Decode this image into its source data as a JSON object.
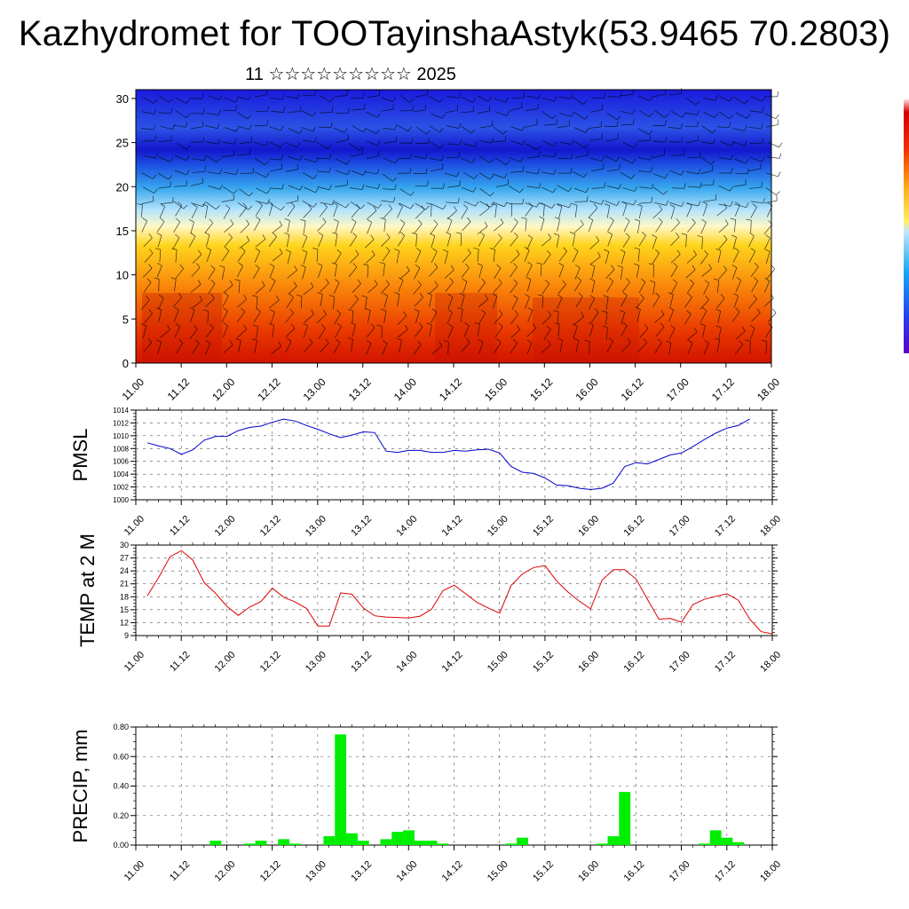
{
  "header": {
    "title": "Kazhydromet for TOOTayinshaAstyk(53.9465 70.2803)",
    "subtitle": "11 ☆☆☆☆☆☆☆☆☆ 2025"
  },
  "colors": {
    "pmsl_line": "#0000cc",
    "temp_line": "#dd0000",
    "precip_bar": "#00ee00",
    "cross_section_cold": "#1a1ae0",
    "cross_section_warm": "#e01a00"
  },
  "chart_data": [
    {
      "type": "heatmap",
      "name": "cross-section",
      "title": "",
      "xlabel": "",
      "ylabel": "",
      "x_tick_labels": [
        "11.00",
        "11.12",
        "12.00",
        "12.12",
        "13.00",
        "13.12",
        "14.00",
        "14.12",
        "15.00",
        "15.12",
        "16.00",
        "16.12",
        "17.00",
        "17.12",
        "18.00"
      ],
      "y_ticks": [
        0,
        5,
        10,
        15,
        20,
        25,
        30
      ],
      "ylim": [
        0,
        31
      ],
      "overlay": "wind barbs",
      "colorbar": "rainbow (blue-cyan-yellow-red), labels not visible"
    },
    {
      "type": "line",
      "name": "pmsl",
      "ylabel": "PMSL",
      "ylim": [
        1000,
        1014
      ],
      "y_ticks": [
        1000,
        1002,
        1004,
        1006,
        1008,
        1010,
        1012,
        1014
      ],
      "x_tick_labels": [
        "11.00",
        "11.12",
        "12.00",
        "12.12",
        "13.00",
        "13.12",
        "14.00",
        "14.12",
        "15.00",
        "15.12",
        "16.00",
        "16.12",
        "17.00",
        "17.12",
        "18.00"
      ],
      "x_step_hours": 3,
      "values": [
        1008.9,
        1008.4,
        1008.0,
        1007.1,
        1007.8,
        1009.3,
        1009.9,
        1009.9,
        1010.8,
        1011.3,
        1011.5,
        1012.1,
        1012.6,
        1012.3,
        1011.6,
        1011.0,
        1010.3,
        1009.7,
        1010.1,
        1010.6,
        1010.5,
        1007.6,
        1007.4,
        1007.7,
        1007.7,
        1007.4,
        1007.4,
        1007.7,
        1007.6,
        1007.8,
        1007.9,
        1007.3,
        1005.2,
        1004.3,
        1004.1,
        1003.4,
        1002.3,
        1002.2,
        1001.8,
        1001.6,
        1001.8,
        1002.6,
        1005.2,
        1005.8,
        1005.6,
        1006.3,
        1007.0,
        1007.3,
        1008.3,
        1009.4,
        1010.4,
        1011.2,
        1011.6,
        1012.6
      ]
    },
    {
      "type": "line",
      "name": "temp2m",
      "ylabel": "TEMP at 2 M",
      "ylim": [
        9,
        30
      ],
      "y_ticks": [
        9,
        12,
        15,
        18,
        21,
        24,
        27,
        30
      ],
      "x_tick_labels": [
        "11.00",
        "11.12",
        "12.00",
        "12.12",
        "13.00",
        "13.12",
        "14.00",
        "14.12",
        "15.00",
        "15.12",
        "16.00",
        "16.12",
        "17.00",
        "17.12",
        "18.00"
      ],
      "x_step_hours": 3,
      "values": [
        18.2,
        22.5,
        27.3,
        28.7,
        26.5,
        21.3,
        18.8,
        15.8,
        13.7,
        15.6,
        16.9,
        20.0,
        17.9,
        16.8,
        15.3,
        11.2,
        11.2,
        18.9,
        18.6,
        15.4,
        13.6,
        13.3,
        13.2,
        13.1,
        13.5,
        15.1,
        19.4,
        20.7,
        18.7,
        16.7,
        15.4,
        14.2,
        20.6,
        23.3,
        24.8,
        25.2,
        21.7,
        19.1,
        17.0,
        15.2,
        21.8,
        24.3,
        24.3,
        22.1,
        17.4,
        12.8,
        13.0,
        12.1,
        16.2,
        17.4,
        18.1,
        18.7,
        17.2,
        12.8,
        9.9,
        9.4
      ]
    },
    {
      "type": "bar",
      "name": "precip",
      "ylabel": "PRECIP, mm",
      "ylim": [
        0,
        0.8
      ],
      "y_tick_labels": [
        "0.00",
        "0.20",
        "0.40",
        "0.60",
        "0.80"
      ],
      "x_tick_labels": [
        "11.00",
        "11.12",
        "12.00",
        "12.12",
        "13.00",
        "13.12",
        "14.00",
        "14.12",
        "15.00",
        "15.12",
        "16.00",
        "16.12",
        "17.00",
        "17.12",
        "18.00"
      ],
      "x_step_hours": 3,
      "values": [
        0,
        0,
        0,
        0,
        0,
        0,
        0.03,
        0,
        0,
        0.01,
        0.03,
        0,
        0.04,
        0.01,
        0,
        0,
        0.06,
        0.75,
        0.08,
        0.03,
        0,
        0.04,
        0.09,
        0.1,
        0.03,
        0.03,
        0.01,
        0,
        0,
        0,
        0,
        0,
        0.01,
        0.05,
        0,
        0,
        0,
        0,
        0,
        0,
        0.01,
        0.06,
        0.36,
        0,
        0,
        0,
        0,
        0,
        0,
        0.01,
        0.1,
        0.05,
        0.02,
        0,
        0,
        0
      ]
    }
  ]
}
